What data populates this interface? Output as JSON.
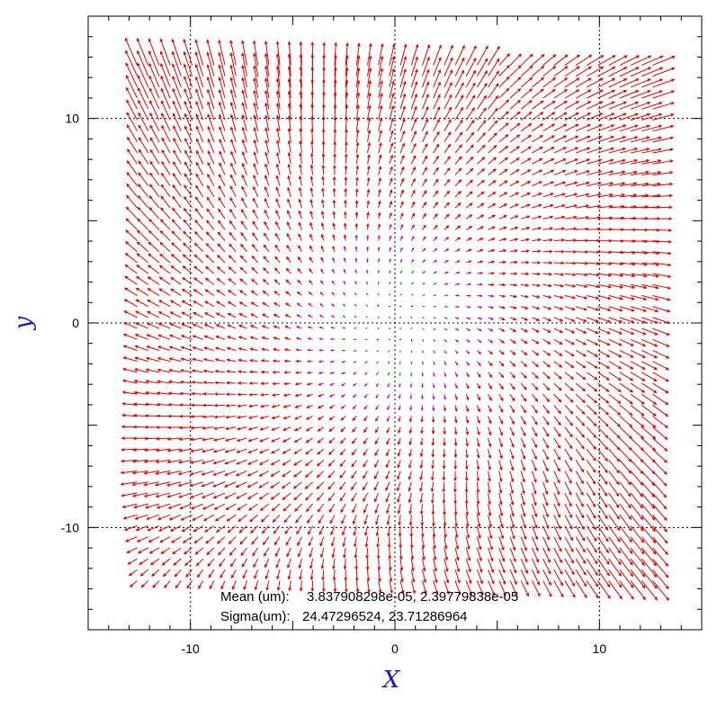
{
  "chart_data": {
    "type": "scatter",
    "plot_kind": "vector-field",
    "xlabel": "X",
    "ylabel": "y",
    "xlim": [
      -15,
      15
    ],
    "ylim": [
      -15,
      15
    ],
    "x_ticks": [
      -10,
      0,
      10
    ],
    "y_ticks": [
      -10,
      0,
      10
    ],
    "x_tick_labels": [
      "-10",
      "0",
      "10"
    ],
    "y_tick_labels": [
      "-10",
      "0",
      "10"
    ],
    "grid": "dotted at major ticks",
    "vector_grid": {
      "range": [
        -12.6,
        12.6
      ],
      "count": 48
    },
    "colors": {
      "axis_title": "#1a1ab8",
      "large_vector": "#e00000",
      "medium_vector": "#c000c0",
      "small_vector": "#00a000",
      "tiny_vector": "#000000"
    },
    "stats": {
      "mean_label": "Mean (um):",
      "mean_values": "3.837908298e-05, 2.39779838e-05",
      "sigma_label": "Sigma(um):",
      "sigma_values": "24.47296524, 23.71286964"
    }
  }
}
